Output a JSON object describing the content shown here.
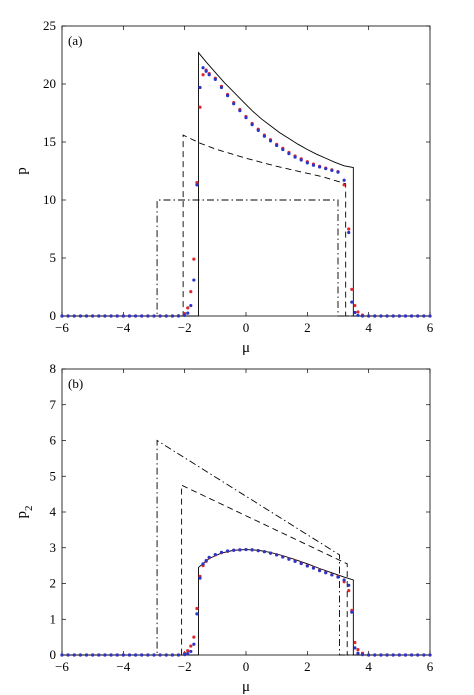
{
  "chart_data": [
    {
      "type": "line",
      "panel_label": "(a)",
      "xlabel": "μ",
      "ylabel": "p",
      "ylabel_sub": "",
      "xlim": [
        -6,
        6
      ],
      "ylim": [
        0,
        25
      ],
      "xticks": [
        -6,
        -4,
        -2,
        0,
        2,
        4,
        6
      ],
      "yticks": [
        0,
        5,
        10,
        15,
        20,
        25
      ],
      "grid": false,
      "series": [
        {
          "style": "solid",
          "color": "#000000",
          "x": [
            -6,
            -1.55,
            -1.55,
            -1.3,
            -1.0,
            -0.7,
            -0.4,
            -0.1,
            0.2,
            0.5,
            0.8,
            1.1,
            1.4,
            1.7,
            2.0,
            2.3,
            2.6,
            2.9,
            3.2,
            3.5,
            3.5,
            6
          ],
          "y": [
            0,
            0,
            22.7,
            21.9,
            21.0,
            20.1,
            19.3,
            18.5,
            17.7,
            17.0,
            16.4,
            15.8,
            15.3,
            14.8,
            14.35,
            13.95,
            13.6,
            13.25,
            12.95,
            12.8,
            0,
            0
          ]
        },
        {
          "style": "dashed",
          "color": "#000000",
          "x": [
            -6,
            -2.05,
            -2.05,
            -1.5,
            -1.0,
            -0.5,
            0.0,
            0.5,
            1.0,
            1.5,
            2.0,
            2.5,
            3.0,
            3.25,
            3.25,
            6
          ],
          "y": [
            0,
            0,
            15.6,
            14.9,
            14.4,
            14.0,
            13.6,
            13.25,
            12.9,
            12.6,
            12.3,
            12.0,
            11.6,
            11.4,
            0,
            0
          ]
        },
        {
          "style": "dashdot",
          "color": "#000000",
          "x": [
            -6,
            -2.9,
            -2.9,
            3.0,
            3.0,
            6
          ],
          "y": [
            0,
            0,
            10.0,
            10.0,
            0,
            0
          ]
        }
      ],
      "dots": [
        {
          "color": "#e0282c",
          "x": [
            -6,
            -5.8,
            -5.6,
            -5.4,
            -5.2,
            -5,
            -4.8,
            -4.6,
            -4.4,
            -4.2,
            -4,
            -3.8,
            -3.6,
            -3.4,
            -3.2,
            -3,
            -2.8,
            -2.6,
            -2.4,
            -2.2,
            -2.0,
            -1.9,
            -1.8,
            -1.7,
            -1.6,
            -1.5,
            -1.4,
            -1.3,
            -1.2,
            -1.0,
            -0.8,
            -0.6,
            -0.4,
            -0.2,
            0.0,
            0.2,
            0.4,
            0.6,
            0.8,
            1.0,
            1.2,
            1.4,
            1.6,
            1.8,
            2.0,
            2.2,
            2.4,
            2.6,
            2.8,
            3.0,
            3.2,
            3.35,
            3.45,
            3.55,
            3.65,
            3.8,
            4.0,
            4.2,
            4.4,
            4.6,
            4.8,
            5.0,
            5.2,
            5.4,
            5.6,
            5.8,
            6.0
          ],
          "y": [
            0,
            0,
            0,
            0,
            0,
            0,
            0,
            0,
            0,
            0,
            0,
            0,
            0,
            0,
            0,
            0,
            0,
            0,
            0,
            0.02,
            0.2,
            0.7,
            2.1,
            4.9,
            11.5,
            18.0,
            20.8,
            21.2,
            20.9,
            20.5,
            19.8,
            19.1,
            18.4,
            17.8,
            17.2,
            16.6,
            16.1,
            15.6,
            15.2,
            14.8,
            14.45,
            14.1,
            13.8,
            13.55,
            13.3,
            13.1,
            12.9,
            12.75,
            12.6,
            12.45,
            11.3,
            7.5,
            2.3,
            0.9,
            0.35,
            0.08,
            0,
            0,
            0,
            0,
            0,
            0,
            0,
            0,
            0,
            0,
            0
          ]
        },
        {
          "color": "#2b35c8",
          "x": [
            -6,
            -5.8,
            -5.6,
            -5.4,
            -5.2,
            -5,
            -4.8,
            -4.6,
            -4.4,
            -4.2,
            -4,
            -3.8,
            -3.6,
            -3.4,
            -3.2,
            -3,
            -2.8,
            -2.6,
            -2.4,
            -2.2,
            -2.0,
            -1.9,
            -1.8,
            -1.7,
            -1.6,
            -1.5,
            -1.4,
            -1.3,
            -1.2,
            -1.0,
            -0.8,
            -0.6,
            -0.4,
            -0.2,
            0.0,
            0.2,
            0.4,
            0.6,
            0.8,
            1.0,
            1.2,
            1.4,
            1.6,
            1.8,
            2.0,
            2.2,
            2.4,
            2.6,
            2.8,
            3.0,
            3.2,
            3.35,
            3.45,
            3.55,
            3.65,
            3.8,
            4.0,
            4.2,
            4.4,
            4.6,
            4.8,
            5.0,
            5.2,
            5.4,
            5.6,
            5.8,
            6.0
          ],
          "y": [
            0,
            0,
            0,
            0,
            0,
            0,
            0,
            0,
            0,
            0,
            0,
            0,
            0,
            0,
            0,
            0,
            0,
            0,
            0,
            0,
            0.05,
            0.25,
            0.9,
            3.1,
            11.3,
            19.7,
            21.4,
            21.1,
            20.8,
            20.4,
            19.7,
            19.0,
            18.3,
            17.7,
            17.1,
            16.5,
            16.0,
            15.5,
            15.1,
            14.7,
            14.35,
            14.0,
            13.7,
            13.45,
            13.2,
            13.0,
            12.85,
            12.7,
            12.55,
            12.4,
            11.7,
            7.2,
            1.2,
            0.3,
            0.05,
            0,
            0,
            0,
            0,
            0,
            0,
            0,
            0,
            0,
            0,
            0,
            0
          ]
        }
      ]
    },
    {
      "type": "line",
      "panel_label": "(b)",
      "xlabel": "μ",
      "ylabel": "p",
      "ylabel_sub": "2",
      "xlim": [
        -6,
        6
      ],
      "ylim": [
        0,
        8
      ],
      "xticks": [
        -6,
        -4,
        -2,
        0,
        2,
        4,
        6
      ],
      "yticks": [
        0,
        1,
        2,
        3,
        4,
        5,
        6,
        7,
        8
      ],
      "grid": false,
      "series": [
        {
          "style": "solid",
          "color": "#000000",
          "x": [
            -6,
            -1.55,
            -1.55,
            -1.2,
            -0.8,
            -0.4,
            0.0,
            0.4,
            0.8,
            1.2,
            1.6,
            2.0,
            2.4,
            2.8,
            3.2,
            3.5,
            3.5,
            6
          ],
          "y": [
            0,
            0,
            2.45,
            2.7,
            2.85,
            2.93,
            2.95,
            2.93,
            2.87,
            2.78,
            2.67,
            2.55,
            2.42,
            2.3,
            2.18,
            2.1,
            0,
            0
          ]
        },
        {
          "style": "dashdot",
          "color": "#000000",
          "x": [
            -6,
            -2.9,
            -2.9,
            3.05,
            3.05,
            6
          ],
          "y": [
            0,
            0,
            6.0,
            2.8,
            0,
            0
          ]
        },
        {
          "style": "dashed",
          "color": "#000000",
          "x": [
            -6,
            -2.1,
            -2.1,
            3.3,
            3.3,
            6
          ],
          "y": [
            0,
            0,
            4.75,
            2.55,
            0,
            0
          ]
        }
      ],
      "dots": [
        {
          "color": "#e0282c",
          "x": [
            -6,
            -5.8,
            -5.6,
            -5.4,
            -5.2,
            -5,
            -4.8,
            -4.6,
            -4.4,
            -4.2,
            -4,
            -3.8,
            -3.6,
            -3.4,
            -3.2,
            -3,
            -2.8,
            -2.6,
            -2.4,
            -2.2,
            -2.0,
            -1.9,
            -1.8,
            -1.7,
            -1.6,
            -1.5,
            -1.4,
            -1.3,
            -1.2,
            -1.0,
            -0.8,
            -0.6,
            -0.4,
            -0.2,
            0.0,
            0.2,
            0.4,
            0.6,
            0.8,
            1.0,
            1.2,
            1.4,
            1.6,
            1.8,
            2.0,
            2.2,
            2.4,
            2.6,
            2.8,
            3.0,
            3.2,
            3.35,
            3.45,
            3.55,
            3.65,
            3.8,
            4.0,
            4.2,
            4.4,
            4.6,
            4.8,
            5.0,
            5.2,
            5.4,
            5.6,
            5.8,
            6.0
          ],
          "y": [
            0,
            0,
            0,
            0,
            0,
            0,
            0,
            0,
            0,
            0,
            0,
            0,
            0,
            0,
            0,
            0,
            0,
            0,
            0,
            0,
            0.05,
            0.12,
            0.25,
            0.5,
            1.3,
            2.2,
            2.5,
            2.62,
            2.72,
            2.8,
            2.86,
            2.9,
            2.93,
            2.94,
            2.95,
            2.94,
            2.92,
            2.89,
            2.85,
            2.8,
            2.75,
            2.69,
            2.63,
            2.57,
            2.5,
            2.44,
            2.37,
            2.31,
            2.25,
            2.2,
            2.05,
            1.8,
            1.25,
            0.35,
            0.15,
            0.05,
            0,
            0,
            0,
            0,
            0,
            0,
            0,
            0,
            0,
            0,
            0
          ]
        },
        {
          "color": "#2b35c8",
          "x": [
            -6,
            -5.8,
            -5.6,
            -5.4,
            -5.2,
            -5,
            -4.8,
            -4.6,
            -4.4,
            -4.2,
            -4,
            -3.8,
            -3.6,
            -3.4,
            -3.2,
            -3,
            -2.8,
            -2.6,
            -2.4,
            -2.2,
            -2.0,
            -1.9,
            -1.8,
            -1.7,
            -1.6,
            -1.5,
            -1.4,
            -1.3,
            -1.2,
            -1.0,
            -0.8,
            -0.6,
            -0.4,
            -0.2,
            0.0,
            0.2,
            0.4,
            0.6,
            0.8,
            1.0,
            1.2,
            1.4,
            1.6,
            1.8,
            2.0,
            2.2,
            2.4,
            2.6,
            2.8,
            3.0,
            3.2,
            3.35,
            3.45,
            3.55,
            3.65,
            3.8,
            4.0,
            4.2,
            4.4,
            4.6,
            4.8,
            5.0,
            5.2,
            5.4,
            5.6,
            5.8,
            6.0
          ],
          "y": [
            0,
            0,
            0,
            0,
            0,
            0,
            0,
            0,
            0,
            0,
            0,
            0,
            0,
            0,
            0,
            0,
            0,
            0,
            0,
            0,
            0.01,
            0.04,
            0.1,
            0.3,
            1.15,
            2.15,
            2.55,
            2.64,
            2.73,
            2.81,
            2.87,
            2.91,
            2.93,
            2.94,
            2.95,
            2.94,
            2.92,
            2.89,
            2.85,
            2.8,
            2.74,
            2.68,
            2.62,
            2.56,
            2.49,
            2.43,
            2.36,
            2.3,
            2.24,
            2.18,
            2.1,
            1.95,
            1.2,
            0.2,
            0.05,
            0.01,
            0,
            0,
            0,
            0,
            0,
            0,
            0,
            0,
            0,
            0,
            0
          ]
        }
      ]
    }
  ]
}
